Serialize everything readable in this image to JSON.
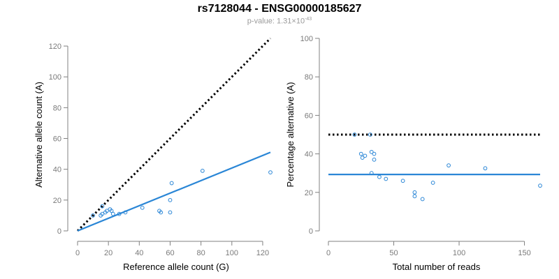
{
  "title": "rs7128044 - ENSG00000185627",
  "subtitle": {
    "prefix": "p-value: 1.31×10",
    "exponent": "-43"
  },
  "colors": {
    "points": "#2a86d6",
    "fit_line": "#2a86d6",
    "reference_line": "#000000",
    "axis": "#808080"
  },
  "chart_data": [
    {
      "type": "scatter",
      "xlabel": "Reference allele count (G)",
      "ylabel": "Alternative allele count (A)",
      "xlim": [
        0,
        125
      ],
      "ylim": [
        0,
        125
      ],
      "xticks": [
        0,
        20,
        40,
        60,
        80,
        100,
        120
      ],
      "yticks": [
        0,
        20,
        40,
        60,
        80,
        100,
        120
      ],
      "points": [
        {
          "x": 10,
          "y": 10
        },
        {
          "x": 15,
          "y": 10
        },
        {
          "x": 16,
          "y": 11
        },
        {
          "x": 18,
          "y": 12
        },
        {
          "x": 19,
          "y": 13
        },
        {
          "x": 21,
          "y": 14
        },
        {
          "x": 22,
          "y": 13
        },
        {
          "x": 23,
          "y": 11
        },
        {
          "x": 27,
          "y": 11
        },
        {
          "x": 31,
          "y": 12
        },
        {
          "x": 42,
          "y": 15
        },
        {
          "x": 53,
          "y": 13
        },
        {
          "x": 54,
          "y": 12
        },
        {
          "x": 60,
          "y": 20
        },
        {
          "x": 60,
          "y": 12
        },
        {
          "x": 61,
          "y": 31
        },
        {
          "x": 81,
          "y": 39
        },
        {
          "x": 125,
          "y": 38
        },
        {
          "x": 16,
          "y": 16
        }
      ],
      "reference_line": {
        "style": "dotted",
        "x": [
          0,
          125
        ],
        "y": [
          0,
          125
        ]
      },
      "fit_line": {
        "x": [
          0,
          125
        ],
        "y": [
          0,
          51
        ]
      }
    },
    {
      "type": "scatter",
      "xlabel": "Total number of reads",
      "ylabel": "Percentage alternative (A)",
      "xlim": [
        0,
        162
      ],
      "ylim": [
        0,
        100
      ],
      "xticks": [
        0,
        50,
        100,
        150
      ],
      "yticks": [
        0,
        20,
        40,
        60,
        80,
        100
      ],
      "points": [
        {
          "x": 20,
          "y": 50
        },
        {
          "x": 25,
          "y": 40
        },
        {
          "x": 26,
          "y": 38
        },
        {
          "x": 28,
          "y": 39
        },
        {
          "x": 32,
          "y": 50
        },
        {
          "x": 33,
          "y": 41
        },
        {
          "x": 33,
          "y": 30
        },
        {
          "x": 35,
          "y": 40
        },
        {
          "x": 35,
          "y": 37
        },
        {
          "x": 39,
          "y": 28
        },
        {
          "x": 44,
          "y": 27
        },
        {
          "x": 57,
          "y": 26
        },
        {
          "x": 66,
          "y": 20
        },
        {
          "x": 66,
          "y": 18
        },
        {
          "x": 72,
          "y": 16.5
        },
        {
          "x": 80,
          "y": 25
        },
        {
          "x": 92,
          "y": 34
        },
        {
          "x": 120,
          "y": 32.5
        },
        {
          "x": 162,
          "y": 23.5
        }
      ],
      "reference_line": {
        "style": "dotted",
        "x": [
          0,
          162
        ],
        "y": [
          50,
          50
        ]
      },
      "fit_line": {
        "x": [
          0,
          162
        ],
        "y": [
          29.3,
          29.3
        ]
      }
    }
  ]
}
